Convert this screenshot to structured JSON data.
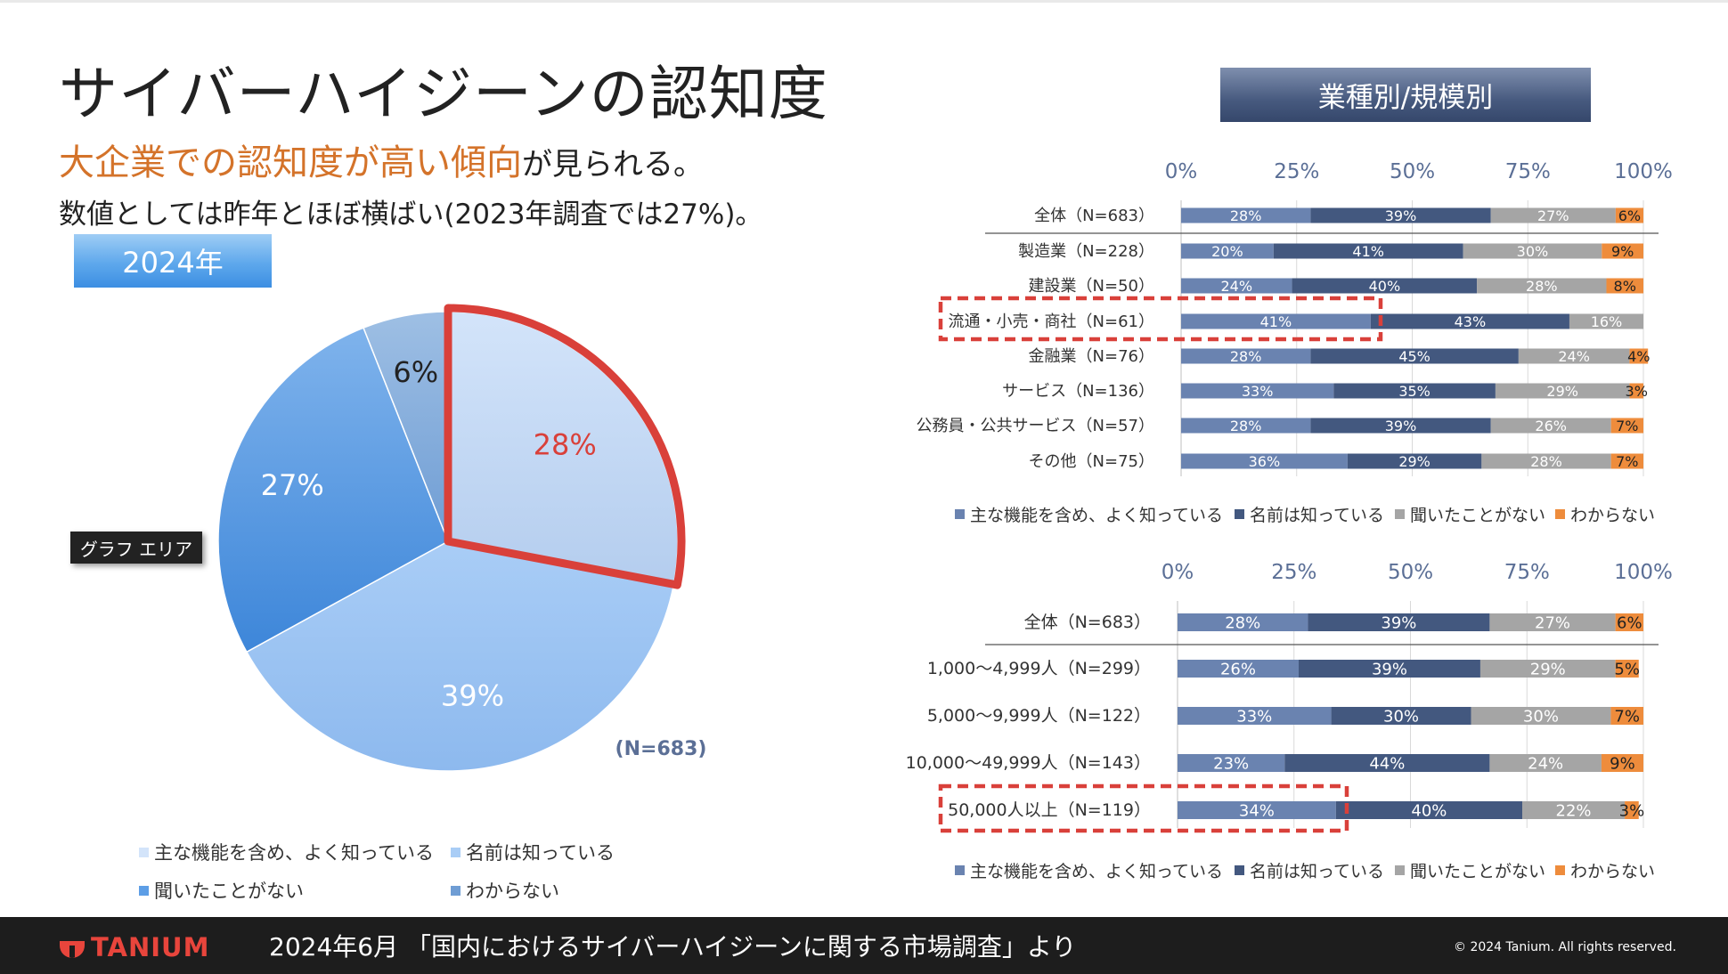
{
  "title": "サイバーハイジーンの認知度",
  "subtitle": {
    "highlight": "大企業での認知度が高い傾向",
    "rest": "が見られる。"
  },
  "subline": "数値としては昨年とほぼ横ばい(2023年調査では27%)。",
  "year_badge": "2024年",
  "tooltip": "グラフ エリア",
  "section_badge": "業種別/規模別",
  "colors": {
    "highlight_text": "#d4732a",
    "red_outline": "#d9403a",
    "bar_known_well": "#6a83b0",
    "bar_name_only": "#43587f",
    "bar_heard_no": "#a5a5a5",
    "bar_unknown": "#ee8c3c"
  },
  "chart_data": [
    {
      "type": "pie",
      "title": "",
      "note": "(N=683)",
      "slices": [
        {
          "label": "主な機能を含め、よく知っている",
          "value": 28,
          "display": "28%"
        },
        {
          "label": "名前は知っている",
          "value": 39,
          "display": "39%"
        },
        {
          "label": "聞いたことがない",
          "value": 27,
          "display": "27%"
        },
        {
          "label": "わからない",
          "value": 6,
          "display": "6%"
        }
      ],
      "highlighted": "主な機能を含め、よく知っている",
      "legend": [
        "主な機能を含め、よく知っている",
        "名前は知っている",
        "聞いたことがない",
        "わからない"
      ]
    },
    {
      "type": "bar",
      "orientation": "horizontal",
      "stacked": true,
      "xlim": [
        0,
        100
      ],
      "xticks": [
        "0%",
        "25%",
        "50%",
        "75%",
        "100%"
      ],
      "categories": [
        "全体（N=683）",
        "製造業（N=228）",
        "建設業（N=50）",
        "流通・小売・商社（N=61）",
        "金融業（N=76）",
        "サービス（N=136）",
        "公務員・公共サービス（N=57）",
        "その他（N=75）"
      ],
      "series": [
        {
          "name": "主な機能を含め、よく知っている",
          "values": [
            28,
            20,
            24,
            41,
            28,
            33,
            28,
            36
          ],
          "labels": [
            "28%",
            "20%",
            "24%",
            "41%",
            "28%",
            "33%",
            "28%",
            "36%"
          ]
        },
        {
          "name": "名前は知っている",
          "values": [
            39,
            41,
            40,
            43,
            45,
            35,
            39,
            29
          ],
          "labels": [
            "39%",
            "41%",
            "40%",
            "43%",
            "45%",
            "35%",
            "39%",
            "29%"
          ]
        },
        {
          "name": "聞いたことがない",
          "values": [
            27,
            30,
            28,
            16,
            24,
            29,
            26,
            28
          ],
          "labels": [
            "27%",
            "30%",
            "28%",
            "16%",
            "24%",
            "29%",
            "26%",
            "28%"
          ]
        },
        {
          "name": "わからない",
          "values": [
            6,
            9,
            8,
            0,
            4,
            3,
            7,
            7
          ],
          "labels": [
            "6%",
            "9%",
            "8%",
            "",
            "4%",
            "3%",
            "7%",
            "7%"
          ]
        }
      ],
      "highlighted_category": "流通・小売・商社（N=61）",
      "legend": [
        "主な機能を含め、よく知っている",
        "名前は知っている",
        "聞いたことがない",
        "わからない"
      ]
    },
    {
      "type": "bar",
      "orientation": "horizontal",
      "stacked": true,
      "xlim": [
        0,
        100
      ],
      "xticks": [
        "0%",
        "25%",
        "50%",
        "75%",
        "100%"
      ],
      "categories": [
        "全体（N=683）",
        "1,000～4,999人（N=299）",
        "5,000～9,999人（N=122）",
        "10,000～49,999人（N=143）",
        "50,000人以上（N=119）"
      ],
      "series": [
        {
          "name": "主な機能を含め、よく知っている",
          "values": [
            28,
            26,
            33,
            23,
            34
          ],
          "labels": [
            "28%",
            "26%",
            "33%",
            "23%",
            "34%"
          ]
        },
        {
          "name": "名前は知っている",
          "values": [
            39,
            39,
            30,
            44,
            40
          ],
          "labels": [
            "39%",
            "39%",
            "30%",
            "44%",
            "40%"
          ]
        },
        {
          "name": "聞いたことがない",
          "values": [
            27,
            29,
            30,
            24,
            22
          ],
          "labels": [
            "27%",
            "29%",
            "30%",
            "24%",
            "22%"
          ]
        },
        {
          "name": "わからない",
          "values": [
            6,
            5,
            7,
            9,
            3
          ],
          "labels": [
            "6%",
            "5%",
            "7%",
            "9%",
            "3%"
          ]
        }
      ],
      "highlighted_category": "50,000人以上（N=119）",
      "legend": [
        "主な機能を含め、よく知っている",
        "名前は知っている",
        "聞いたことがない",
        "わからない"
      ]
    }
  ],
  "footer": {
    "logo": "TANIUM",
    "source": "2024年6月 「国内におけるサイバーハイジーンに関する市場調査」より",
    "copyright": "© 2024 Tanium. All rights reserved."
  }
}
